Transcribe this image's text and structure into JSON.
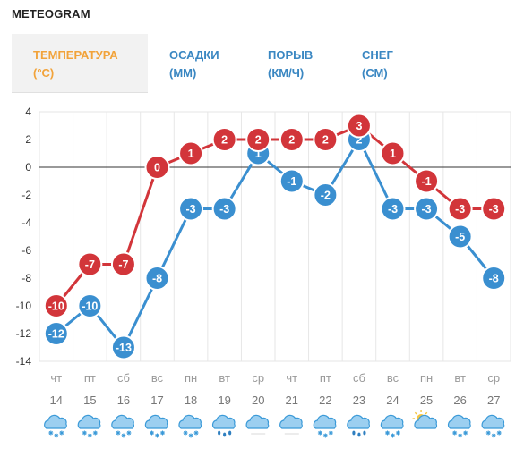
{
  "header": {
    "title": "METEOGRAM"
  },
  "tabs": [
    {
      "line1": "ТЕМПЕРАТУРА",
      "line2": "(°C)",
      "active": true
    },
    {
      "line1": "ОСАДКИ",
      "line2": "(ММ)",
      "active": false
    },
    {
      "line1": "ПОРЫВ",
      "line2": "(КМ/Ч)",
      "active": false
    },
    {
      "line1": "СНЕГ",
      "line2": "(СМ)",
      "active": false
    }
  ],
  "colors": {
    "max_series": "#d2353a",
    "min_series": "#3a8fd0",
    "active_tab": "#f2a33a",
    "tab": "#3a87c2"
  },
  "chart_data": {
    "type": "line",
    "ylim": [
      -14,
      4
    ],
    "yticks": [
      4,
      2,
      0,
      -2,
      -4,
      -6,
      -8,
      -10,
      -12,
      -14
    ],
    "grid": true,
    "zero_line": true,
    "categories": [
      {
        "day": "чт",
        "date": "14"
      },
      {
        "day": "пт",
        "date": "15"
      },
      {
        "day": "сб",
        "date": "16"
      },
      {
        "day": "вс",
        "date": "17"
      },
      {
        "day": "пн",
        "date": "18"
      },
      {
        "day": "вт",
        "date": "19"
      },
      {
        "day": "ср",
        "date": "20"
      },
      {
        "day": "чт",
        "date": "21"
      },
      {
        "day": "пт",
        "date": "22"
      },
      {
        "day": "сб",
        "date": "23"
      },
      {
        "day": "вс",
        "date": "24"
      },
      {
        "day": "пн",
        "date": "25"
      },
      {
        "day": "вт",
        "date": "26"
      },
      {
        "day": "ср",
        "date": "27"
      }
    ],
    "series": [
      {
        "values": [
          -10,
          -7,
          -7,
          0,
          1,
          2,
          2,
          2,
          2,
          3,
          1,
          -1,
          -3,
          -3
        ],
        "color": "#d2353a"
      },
      {
        "values": [
          -12,
          -10,
          -13,
          -8,
          -3,
          -3,
          1,
          -1,
          -2,
          2,
          -3,
          -3,
          -5,
          -8
        ],
        "color": "#3a8fd0"
      }
    ],
    "weather_icons": [
      "cloud-snow-icon",
      "cloud-snow-icon",
      "cloud-snow-icon",
      "cloud-snow-icon",
      "cloud-snow-icon",
      "cloud-rain-icon",
      "cloud-icon",
      "cloud-icon",
      "cloud-snow-icon",
      "cloud-rain-icon",
      "cloud-snow-icon",
      "sun-cloud-icon",
      "cloud-snow-icon",
      "cloud-snow-icon"
    ]
  }
}
